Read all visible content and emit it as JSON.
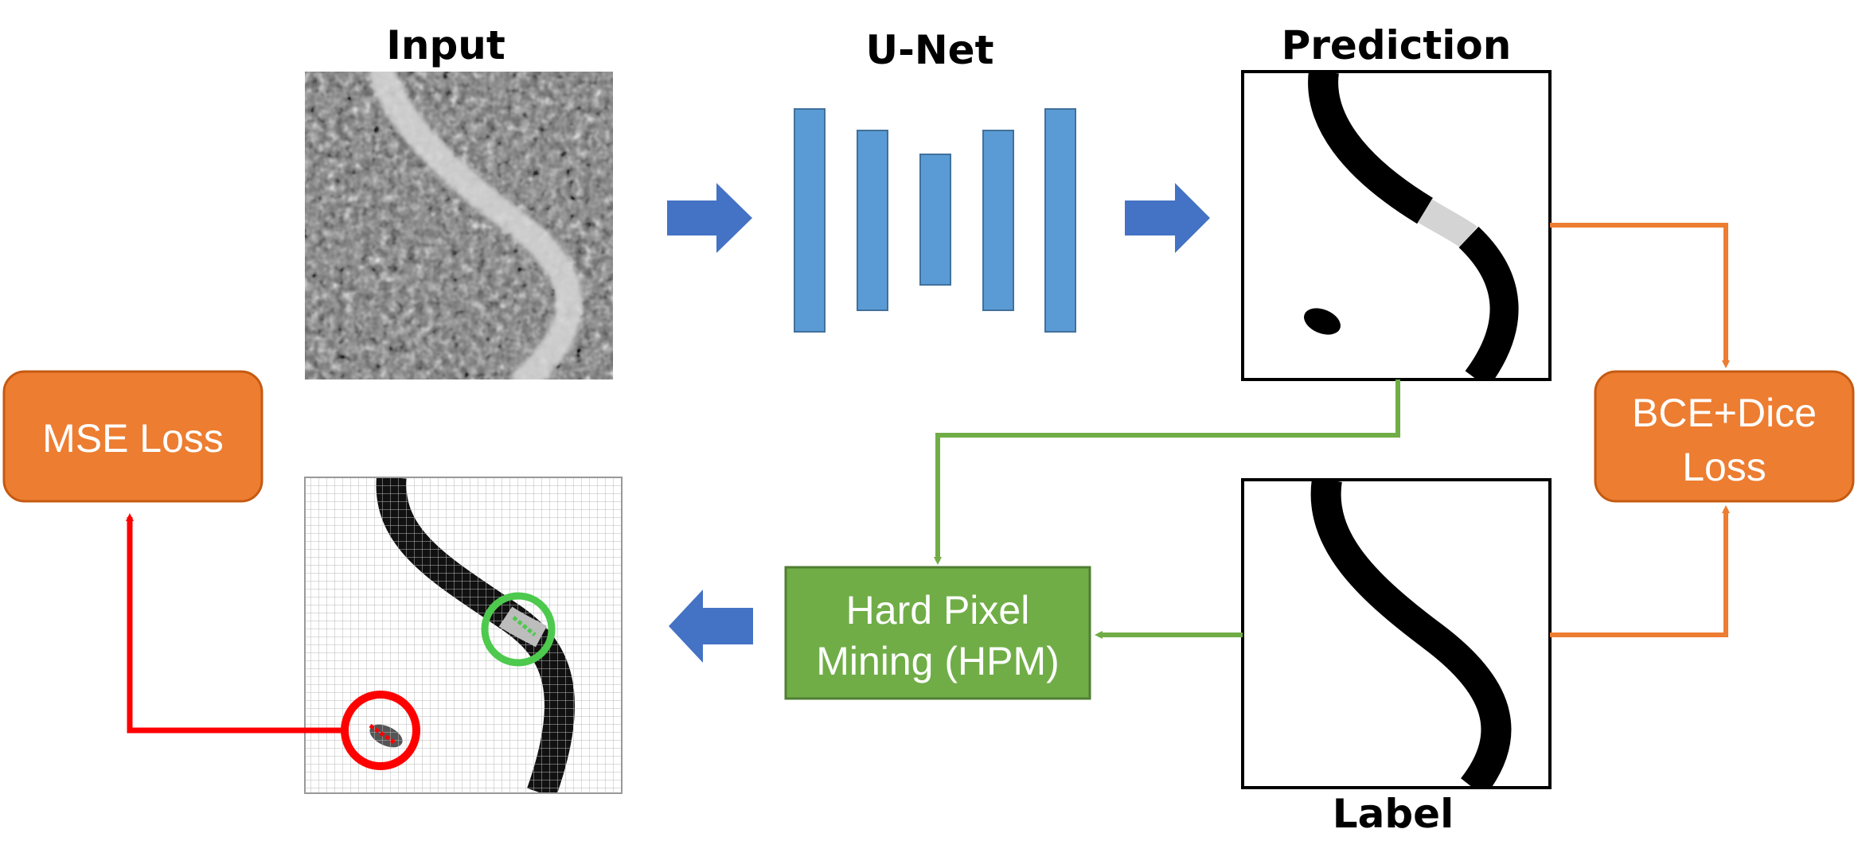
{
  "labels": {
    "input": "Input",
    "unet": "U-Net",
    "prediction": "Prediction",
    "label": "Label"
  },
  "boxes": {
    "mse_loss": "MSE Loss",
    "bce_dice_line1": "BCE+Dice",
    "bce_dice_line2": "Loss",
    "hpm_line1": "Hard Pixel",
    "hpm_line2": "Mining (HPM)"
  },
  "colors": {
    "blue_arrow": "#4472c4",
    "unet_layer": "#5b9bd5",
    "orange": "#ed7d31",
    "green": "#70ad47",
    "red": "#ff0000",
    "circle_green": "#4dc94d"
  }
}
